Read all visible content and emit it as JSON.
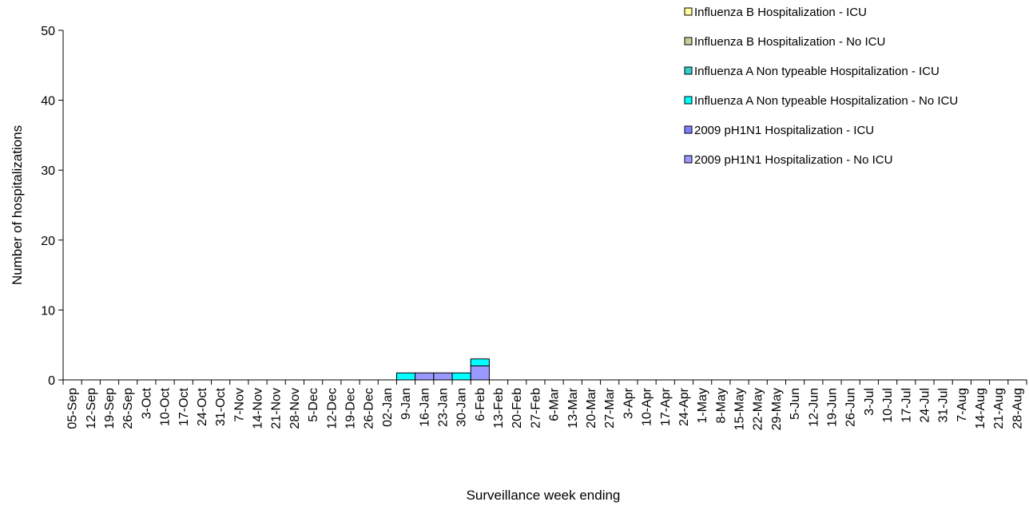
{
  "chart_data": {
    "type": "bar",
    "stacked": true,
    "ylabel": "Number of hospitalizations",
    "xlabel": "Surveillance week ending",
    "ylim": [
      0,
      50
    ],
    "yticks": [
      0,
      10,
      20,
      30,
      40,
      50
    ],
    "grid": false,
    "legend_position": "top-right",
    "categories": [
      "05-Sep",
      "12-Sep",
      "19-Sep",
      "26-Sep",
      "3-Oct",
      "10-Oct",
      "17-Oct",
      "24-Oct",
      "31-Oct",
      "7-Nov",
      "14-Nov",
      "21-Nov",
      "28-Nov",
      "5-Dec",
      "12-Dec",
      "19-Dec",
      "26-Dec",
      "02-Jan",
      "9-Jan",
      "16-Jan",
      "23-Jan",
      "30-Jan",
      "6-Feb",
      "13-Feb",
      "20-Feb",
      "27-Feb",
      "6-Mar",
      "13-Mar",
      "20-Mar",
      "27-Mar",
      "3-Apr",
      "10-Apr",
      "17-Apr",
      "24-Apr",
      "1-May",
      "8-May",
      "15-May",
      "22-May",
      "29-May",
      "5-Jun",
      "12-Jun",
      "19-Jun",
      "26-Jun",
      "3-Jul",
      "10-Jul",
      "17-Jul",
      "24-Jul",
      "31-Jul",
      "7-Aug",
      "14-Aug",
      "21-Aug",
      "28-Aug"
    ],
    "series": [
      {
        "name": "2009 pH1N1 Hospitalization - No ICU",
        "color": "#9999ff",
        "values": [
          0,
          0,
          0,
          0,
          0,
          0,
          0,
          0,
          0,
          0,
          0,
          0,
          0,
          0,
          0,
          0,
          0,
          0,
          0,
          1,
          1,
          0,
          2,
          0,
          0,
          0,
          0,
          0,
          0,
          0,
          0,
          0,
          0,
          0,
          0,
          0,
          0,
          0,
          0,
          0,
          0,
          0,
          0,
          0,
          0,
          0,
          0,
          0,
          0,
          0,
          0,
          0
        ]
      },
      {
        "name": "2009 pH1N1 Hospitalization - ICU",
        "color": "#8080ff",
        "values": [
          0,
          0,
          0,
          0,
          0,
          0,
          0,
          0,
          0,
          0,
          0,
          0,
          0,
          0,
          0,
          0,
          0,
          0,
          0,
          0,
          0,
          0,
          0,
          0,
          0,
          0,
          0,
          0,
          0,
          0,
          0,
          0,
          0,
          0,
          0,
          0,
          0,
          0,
          0,
          0,
          0,
          0,
          0,
          0,
          0,
          0,
          0,
          0,
          0,
          0,
          0,
          0
        ]
      },
      {
        "name": "Influenza A Non typeable Hospitalization - No ICU",
        "color": "#00ffff",
        "values": [
          0,
          0,
          0,
          0,
          0,
          0,
          0,
          0,
          0,
          0,
          0,
          0,
          0,
          0,
          0,
          0,
          0,
          0,
          1,
          0,
          0,
          1,
          1,
          0,
          0,
          0,
          0,
          0,
          0,
          0,
          0,
          0,
          0,
          0,
          0,
          0,
          0,
          0,
          0,
          0,
          0,
          0,
          0,
          0,
          0,
          0,
          0,
          0,
          0,
          0,
          0,
          0
        ]
      },
      {
        "name": "Influenza A Non typeable Hospitalization - ICU",
        "color": "#33cccc",
        "values": [
          0,
          0,
          0,
          0,
          0,
          0,
          0,
          0,
          0,
          0,
          0,
          0,
          0,
          0,
          0,
          0,
          0,
          0,
          0,
          0,
          0,
          0,
          0,
          0,
          0,
          0,
          0,
          0,
          0,
          0,
          0,
          0,
          0,
          0,
          0,
          0,
          0,
          0,
          0,
          0,
          0,
          0,
          0,
          0,
          0,
          0,
          0,
          0,
          0,
          0,
          0,
          0
        ]
      },
      {
        "name": "Influenza B Hospitalization - No ICU",
        "color": "#cccc99",
        "values": [
          0,
          0,
          0,
          0,
          0,
          0,
          0,
          0,
          0,
          0,
          0,
          0,
          0,
          0,
          0,
          0,
          0,
          0,
          0,
          0,
          0,
          0,
          0,
          0,
          0,
          0,
          0,
          0,
          0,
          0,
          0,
          0,
          0,
          0,
          0,
          0,
          0,
          0,
          0,
          0,
          0,
          0,
          0,
          0,
          0,
          0,
          0,
          0,
          0,
          0,
          0,
          0
        ]
      },
      {
        "name": "Influenza B Hospitalization - ICU",
        "color": "#ffff99",
        "values": [
          0,
          0,
          0,
          0,
          0,
          0,
          0,
          0,
          0,
          0,
          0,
          0,
          0,
          0,
          0,
          0,
          0,
          0,
          0,
          0,
          0,
          0,
          0,
          0,
          0,
          0,
          0,
          0,
          0,
          0,
          0,
          0,
          0,
          0,
          0,
          0,
          0,
          0,
          0,
          0,
          0,
          0,
          0,
          0,
          0,
          0,
          0,
          0,
          0,
          0,
          0,
          0
        ]
      }
    ],
    "legend_order": [
      5,
      4,
      3,
      2,
      1,
      0
    ]
  }
}
